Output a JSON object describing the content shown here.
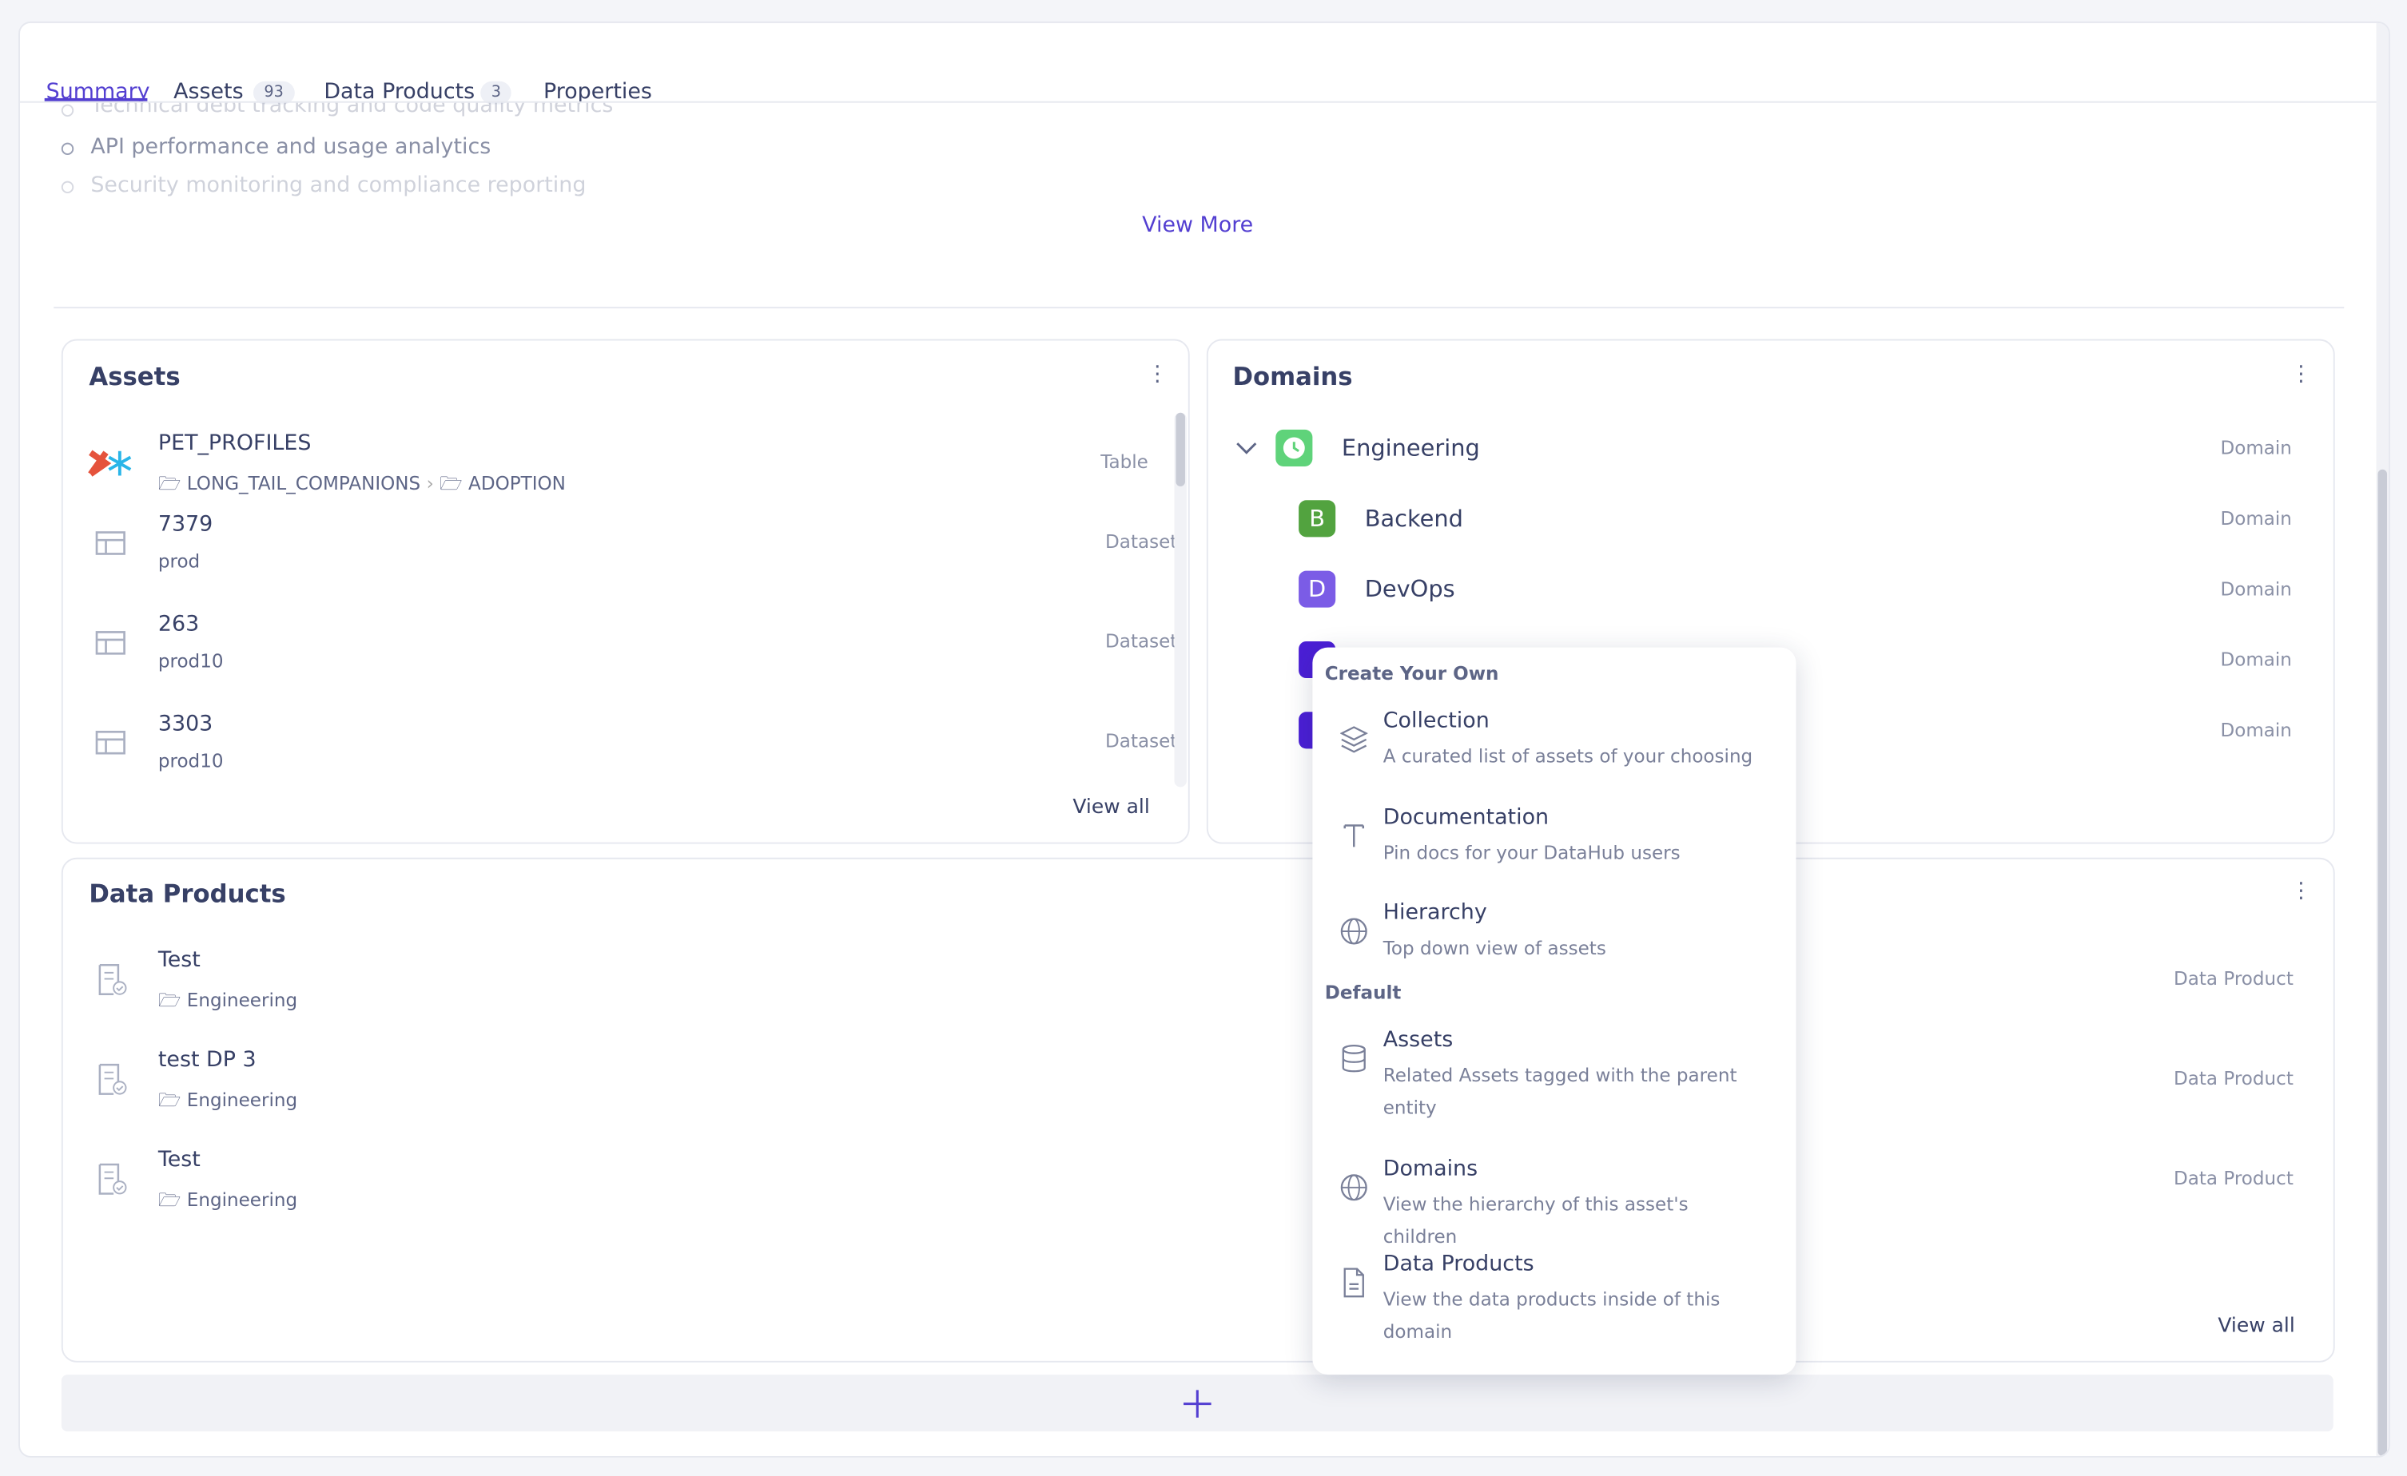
{
  "tabs": [
    {
      "label": "Summary"
    },
    {
      "label": "Assets",
      "count": "93"
    },
    {
      "label": "Data Products",
      "count": "3"
    },
    {
      "label": "Properties"
    }
  ],
  "summary": {
    "bullets": [
      "Technical debt tracking and code quality metrics",
      "API performance and usage analytics",
      "Security monitoring and compliance reporting"
    ],
    "view_more": "View More"
  },
  "assets_card": {
    "title": "Assets",
    "items": [
      {
        "name": "PET_PROFILES",
        "path": [
          "LONG_TAIL_COMPANIONS",
          "ADOPTION"
        ],
        "type": "Table"
      },
      {
        "name": "7379",
        "sub": "prod",
        "type": "Dataset"
      },
      {
        "name": "263",
        "sub": "prod10",
        "type": "Dataset"
      },
      {
        "name": "3303",
        "sub": "prod10",
        "type": "Dataset"
      }
    ],
    "view_all": "View all"
  },
  "domains_card": {
    "title": "Domains",
    "items": [
      {
        "name": "Engineering",
        "type": "Domain"
      },
      {
        "letter": "B",
        "name": "Backend",
        "type": "Domain"
      },
      {
        "letter": "D",
        "name": "DevOps",
        "type": "Domain"
      },
      {
        "type": "Domain"
      },
      {
        "type": "Domain"
      }
    ]
  },
  "data_products_card": {
    "title": "Data Products",
    "items": [
      {
        "name": "Test",
        "domain": "Engineering",
        "type": "Data Product"
      },
      {
        "name": "test DP 3",
        "domain": "Engineering",
        "type": "Data Product"
      },
      {
        "name": "Test",
        "domain": "Engineering",
        "type": "Data Product"
      }
    ],
    "view_all": "View all"
  },
  "menu": {
    "sections": [
      {
        "heading": "Create Your Own",
        "items": [
          {
            "title": "Collection",
            "description": "A curated list of assets of your choosing"
          },
          {
            "title": "Documentation",
            "description": "Pin docs for your DataHub users"
          },
          {
            "title": "Hierarchy",
            "description": "Top down view of assets"
          }
        ]
      },
      {
        "heading": "Default",
        "items": [
          {
            "title": "Assets",
            "description": "Related Assets tagged with the parent entity"
          },
          {
            "title": "Domains",
            "description": "View the hierarchy of this asset's children"
          },
          {
            "title": "Data Products",
            "description": "View the data products inside of this domain"
          }
        ]
      }
    ]
  }
}
